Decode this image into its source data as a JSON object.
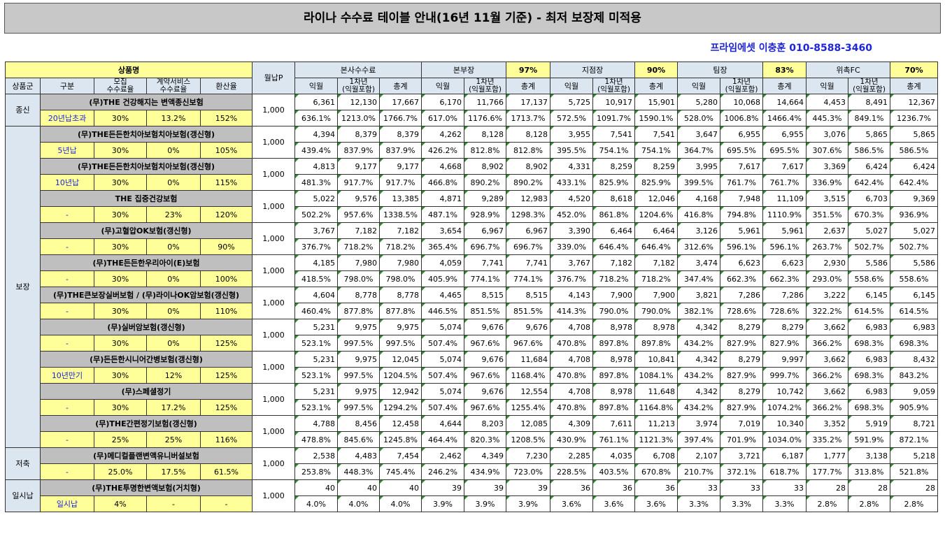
{
  "title": "라이나 수수료 테이블 안내(16년 11월 기준) - 최저 보장제 미적용",
  "contact": "프라임에셋 이충훈 010-8588-3460",
  "headers": {
    "product_name": "상품명",
    "monthly": "월납P",
    "group": "상품군",
    "division": "구분",
    "recruit_rate": [
      "모집",
      "수수료율"
    ],
    "contract_rate": [
      "계약서비스",
      "수수료율"
    ],
    "conversion": "환산율",
    "sections": [
      {
        "label": "본사수수료",
        "pct": ""
      },
      {
        "label": "본부장",
        "pct": "97%"
      },
      {
        "label": "지점장",
        "pct": "90%"
      },
      {
        "label": "팀장",
        "pct": "83%"
      },
      {
        "label": "위촉FC",
        "pct": "70%"
      }
    ],
    "sub": {
      "m1": "익월",
      "y1": [
        "1차년",
        "(익월포함)"
      ],
      "total": "총계"
    }
  },
  "groups": [
    {
      "name": "종신",
      "rows": 1
    },
    {
      "name": "보장",
      "rows": 10
    },
    {
      "name": "저축",
      "rows": 1
    },
    {
      "name": "일시납",
      "rows": 1
    }
  ],
  "products": [
    {
      "name": "(무)THE 건강해지는 변액종신보험",
      "division": "20년납초과",
      "recruit": "30%",
      "contract": "13.2%",
      "conv": "152%",
      "monthly": "1,000",
      "amounts": [
        "6,361",
        "12,130",
        "17,667",
        "6,170",
        "11,766",
        "17,137",
        "5,725",
        "10,917",
        "15,901",
        "5,280",
        "10,068",
        "14,664",
        "4,453",
        "8,491",
        "12,367"
      ],
      "rates": [
        "636.1%",
        "1213.0%",
        "1766.7%",
        "617.0%",
        "1176.6%",
        "1713.7%",
        "572.5%",
        "1091.7%",
        "1590.1%",
        "528.0%",
        "1006.8%",
        "1466.4%",
        "445.3%",
        "849.1%",
        "1236.7%"
      ]
    },
    {
      "name": "(무)THE든든한치아보험치아보험(갱신형)",
      "division": "5년납",
      "recruit": "30%",
      "contract": "0%",
      "conv": "105%",
      "monthly": "1,000",
      "amounts": [
        "4,394",
        "8,379",
        "8,379",
        "4,262",
        "8,128",
        "8,128",
        "3,955",
        "7,541",
        "7,541",
        "3,647",
        "6,955",
        "6,955",
        "3,076",
        "5,865",
        "5,865"
      ],
      "rates": [
        "439.4%",
        "837.9%",
        "837.9%",
        "426.2%",
        "812.8%",
        "812.8%",
        "395.5%",
        "754.1%",
        "754.1%",
        "364.7%",
        "695.5%",
        "695.5%",
        "307.6%",
        "586.5%",
        "586.5%"
      ]
    },
    {
      "name": "(무)THE든든한치아보험치아보험(갱신형)",
      "division": "10년납",
      "recruit": "30%",
      "contract": "0%",
      "conv": "115%",
      "monthly": "1,000",
      "amounts": [
        "4,813",
        "9,177",
        "9,177",
        "4,668",
        "8,902",
        "8,902",
        "4,331",
        "8,259",
        "8,259",
        "3,995",
        "7,617",
        "7,617",
        "3,369",
        "6,424",
        "6,424"
      ],
      "rates": [
        "481.3%",
        "917.7%",
        "917.7%",
        "466.8%",
        "890.2%",
        "890.2%",
        "433.1%",
        "825.9%",
        "825.9%",
        "399.5%",
        "761.7%",
        "761.7%",
        "336.9%",
        "642.4%",
        "642.4%"
      ]
    },
    {
      "name": "THE 집중건강보험",
      "division": "-",
      "recruit": "30%",
      "contract": "23%",
      "conv": "120%",
      "monthly": "1,000",
      "amounts": [
        "5,022",
        "9,576",
        "13,385",
        "4,871",
        "9,289",
        "12,983",
        "4,520",
        "8,618",
        "12,046",
        "4,168",
        "7,948",
        "11,109",
        "3,515",
        "6,703",
        "9,369"
      ],
      "rates": [
        "502.2%",
        "957.6%",
        "1338.5%",
        "487.1%",
        "928.9%",
        "1298.3%",
        "452.0%",
        "861.8%",
        "1204.6%",
        "416.8%",
        "794.8%",
        "1110.9%",
        "351.5%",
        "670.3%",
        "936.9%"
      ]
    },
    {
      "name": "(무)고혈압OK보험(갱신형)",
      "division": "-",
      "recruit": "30%",
      "contract": "0%",
      "conv": "90%",
      "monthly": "1,000",
      "amounts": [
        "3,767",
        "7,182",
        "7,182",
        "3,654",
        "6,967",
        "6,967",
        "3,390",
        "6,464",
        "6,464",
        "3,126",
        "5,961",
        "5,961",
        "2,637",
        "5,027",
        "5,027"
      ],
      "rates": [
        "376.7%",
        "718.2%",
        "718.2%",
        "365.4%",
        "696.7%",
        "696.7%",
        "339.0%",
        "646.4%",
        "646.4%",
        "312.6%",
        "596.1%",
        "596.1%",
        "263.7%",
        "502.7%",
        "502.7%"
      ]
    },
    {
      "name": "(무)THE든든한우리아이(E)보험",
      "division": "-",
      "recruit": "30%",
      "contract": "0%",
      "conv": "100%",
      "monthly": "1,000",
      "amounts": [
        "4,185",
        "7,980",
        "7,980",
        "4,059",
        "7,741",
        "7,741",
        "3,767",
        "7,182",
        "7,182",
        "3,474",
        "6,623",
        "6,623",
        "2,930",
        "5,586",
        "5,586"
      ],
      "rates": [
        "418.5%",
        "798.0%",
        "798.0%",
        "405.9%",
        "774.1%",
        "774.1%",
        "376.7%",
        "718.2%",
        "718.2%",
        "347.4%",
        "662.3%",
        "662.3%",
        "293.0%",
        "558.6%",
        "558.6%"
      ]
    },
    {
      "name": "(무)THE큰보장실버보험 / (무)라이나OK암보험(갱신형)",
      "division": "-",
      "recruit": "30%",
      "contract": "0%",
      "conv": "110%",
      "monthly": "1,000",
      "amounts": [
        "4,604",
        "8,778",
        "8,778",
        "4,465",
        "8,515",
        "8,515",
        "4,143",
        "7,900",
        "7,900",
        "3,821",
        "7,286",
        "7,286",
        "3,222",
        "6,145",
        "6,145"
      ],
      "rates": [
        "460.4%",
        "877.8%",
        "877.8%",
        "446.5%",
        "851.5%",
        "851.5%",
        "414.3%",
        "790.0%",
        "790.0%",
        "382.1%",
        "728.6%",
        "728.6%",
        "322.2%",
        "614.5%",
        "614.5%"
      ]
    },
    {
      "name": "(무)실버암보험(갱신형)",
      "division": "-",
      "recruit": "30%",
      "contract": "0%",
      "conv": "125%",
      "monthly": "1,000",
      "amounts": [
        "5,231",
        "9,975",
        "9,975",
        "5,074",
        "9,676",
        "9,676",
        "4,708",
        "8,978",
        "8,978",
        "4,342",
        "8,279",
        "8,279",
        "3,662",
        "6,983",
        "6,983"
      ],
      "rates": [
        "523.1%",
        "997.5%",
        "997.5%",
        "507.4%",
        "967.6%",
        "967.6%",
        "470.8%",
        "897.8%",
        "897.8%",
        "434.2%",
        "827.9%",
        "827.9%",
        "366.2%",
        "698.3%",
        "698.3%"
      ]
    },
    {
      "name": "(무)든든한시니어간병보험(갱신형)",
      "division": "10년만기",
      "recruit": "30%",
      "contract": "12%",
      "conv": "125%",
      "monthly": "1,000",
      "amounts": [
        "5,231",
        "9,975",
        "12,045",
        "5,074",
        "9,676",
        "11,684",
        "4,708",
        "8,978",
        "10,841",
        "4,342",
        "8,279",
        "9,997",
        "3,662",
        "6,983",
        "8,432"
      ],
      "rates": [
        "523.1%",
        "997.5%",
        "1204.5%",
        "507.4%",
        "967.6%",
        "1168.4%",
        "470.8%",
        "897.8%",
        "1084.1%",
        "434.2%",
        "827.9%",
        "999.7%",
        "366.2%",
        "698.3%",
        "843.2%"
      ]
    },
    {
      "name": "(무)스페셜정기",
      "division": "-",
      "recruit": "30%",
      "contract": "17.2%",
      "conv": "125%",
      "monthly": "1,000",
      "amounts": [
        "5,231",
        "9,975",
        "12,942",
        "5,074",
        "9,676",
        "12,554",
        "4,708",
        "8,978",
        "11,648",
        "4,342",
        "8,279",
        "10,742",
        "3,662",
        "6,983",
        "9,059"
      ],
      "rates": [
        "523.1%",
        "997.5%",
        "1294.2%",
        "507.4%",
        "967.6%",
        "1255.4%",
        "470.8%",
        "897.8%",
        "1164.8%",
        "434.2%",
        "827.9%",
        "1074.2%",
        "366.2%",
        "698.3%",
        "905.9%"
      ]
    },
    {
      "name": "(무)THE간편정기보험(갱신형)",
      "division": "-",
      "recruit": "25%",
      "contract": "25%",
      "conv": "116%",
      "monthly": "1,000",
      "amounts": [
        "4,788",
        "8,456",
        "12,458",
        "4,644",
        "8,203",
        "12,085",
        "4,309",
        "7,611",
        "11,213",
        "3,974",
        "7,019",
        "10,340",
        "3,352",
        "5,919",
        "8,721"
      ],
      "rates": [
        "478.8%",
        "845.6%",
        "1245.8%",
        "464.4%",
        "820.3%",
        "1208.5%",
        "430.9%",
        "761.1%",
        "1121.3%",
        "397.4%",
        "701.9%",
        "1034.0%",
        "335.2%",
        "591.9%",
        "872.1%"
      ]
    },
    {
      "name": "(무)메디컬플랜변액유니버설보험",
      "division": "-",
      "recruit": "25.0%",
      "contract": "17.5%",
      "conv": "61.5%",
      "monthly": "1,000",
      "amounts": [
        "2,538",
        "4,483",
        "7,454",
        "2,462",
        "4,349",
        "7,230",
        "2,285",
        "4,035",
        "6,708",
        "2,107",
        "3,721",
        "6,187",
        "1,777",
        "3,138",
        "5,218"
      ],
      "rates": [
        "253.8%",
        "448.3%",
        "745.4%",
        "246.2%",
        "434.9%",
        "723.0%",
        "228.5%",
        "403.5%",
        "670.8%",
        "210.7%",
        "372.1%",
        "618.7%",
        "177.7%",
        "313.8%",
        "521.8%"
      ]
    },
    {
      "name": "(무)THE투명한변액보험(거치형)",
      "division": "일시납",
      "recruit": "4%",
      "contract": "-",
      "conv": "-",
      "monthly": "1,000",
      "amounts": [
        "40",
        "40",
        "40",
        "39",
        "39",
        "39",
        "36",
        "36",
        "36",
        "33",
        "33",
        "33",
        "28",
        "28",
        "28"
      ],
      "rates": [
        "4.0%",
        "4.0%",
        "4.0%",
        "3.9%",
        "3.9%",
        "3.9%",
        "3.6%",
        "3.6%",
        "3.6%",
        "3.3%",
        "3.3%",
        "3.3%",
        "2.8%",
        "2.8%",
        "2.8%"
      ]
    }
  ]
}
